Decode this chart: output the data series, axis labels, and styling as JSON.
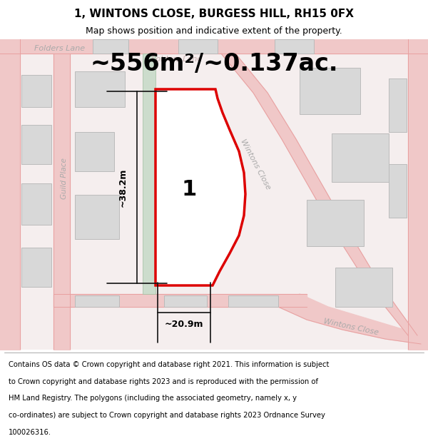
{
  "title_line1": "1, WINTONS CLOSE, BURGESS HILL, RH15 0FX",
  "title_line2": "Map shows position and indicative extent of the property.",
  "area_text": "~556m²/~0.137ac.",
  "dim_width": "~20.9m",
  "dim_height": "~38.2m",
  "plot_number": "1",
  "footer_lines": [
    "Contains OS data © Crown copyright and database right 2021. This information is subject",
    "to Crown copyright and database rights 2023 and is reproduced with the permission of",
    "HM Land Registry. The polygons (including the associated geometry, namely x, y",
    "co-ordinates) are subject to Crown copyright and database rights 2023 Ordnance Survey",
    "100026316."
  ],
  "map_bg": "#f5eeee",
  "plot_fill": "#ffffff",
  "plot_outline": "#dd0000",
  "road_color": "#f0c8c8",
  "road_edge_color": "#e8a0a0",
  "building_fill": "#d8d8d8",
  "building_outline": "#bbbbbb",
  "green_strip_color": "#ccdccc",
  "street_label_color": "#aaaaaa",
  "dim_line_color": "#111111"
}
